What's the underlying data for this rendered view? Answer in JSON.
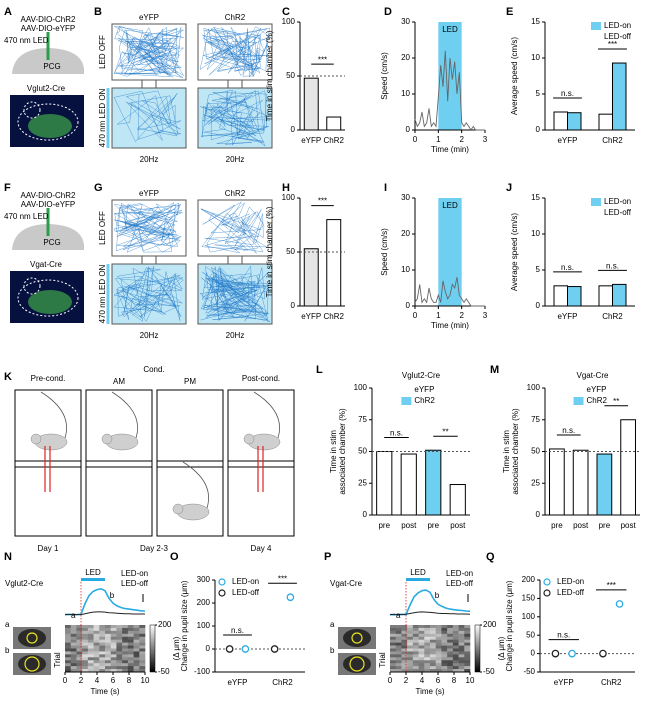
{
  "panel_labels": [
    "A",
    "B",
    "C",
    "D",
    "E",
    "F",
    "G",
    "H",
    "I",
    "J",
    "K",
    "L",
    "M",
    "N",
    "O",
    "P",
    "Q"
  ],
  "schematics": {
    "A": {
      "virus": [
        "AAV-DIO-ChR2",
        "AAV-DIO-eYFP"
      ],
      "light": "470 nm LED",
      "region": "PCG",
      "line": "Vglut2-Cre"
    },
    "F": {
      "virus": [
        "AAV-DIO-ChR2",
        "AAV-DIO-eYFP"
      ],
      "light": "470 nm LED",
      "region": "PCG",
      "line": "Vgat-Cre"
    },
    "B": {
      "groups": [
        "eYFP",
        "ChR2"
      ],
      "rows": [
        "LED OFF",
        "470 nm LED ON"
      ],
      "freq": [
        "20Hz",
        "20Hz"
      ]
    },
    "G": {
      "groups": [
        "eYFP",
        "ChR2"
      ],
      "rows": [
        "LED OFF",
        "470 nm LED ON"
      ],
      "freq": [
        "20Hz",
        "20Hz"
      ]
    },
    "K": {
      "phases": [
        "Pre-cond.",
        "Cond.",
        "Post-cond."
      ],
      "sessions": [
        "AM",
        "PM"
      ],
      "days": [
        "Day 1",
        "Day 2-3",
        "Day 4"
      ]
    }
  },
  "chart_data": [
    {
      "type": "bar",
      "categories": [
        "eYFP",
        "ChR2"
      ],
      "values": [
        48,
        12
      ],
      "colors": [
        "#e6e6e6",
        "#ffffff"
      ],
      "ylim": [
        0,
        100
      ],
      "yticks": [
        0,
        50,
        100
      ],
      "ylabel": "Time in stim chamber (%)",
      "reference_line": 50,
      "annotations": [
        "***"
      ]
    },
    {
      "type": "line",
      "x": [
        0,
        0.1,
        0.2,
        0.3,
        0.4,
        0.5,
        0.6,
        0.7,
        0.8,
        0.9,
        1,
        1.1,
        1.2,
        1.3,
        1.4,
        1.5,
        1.6,
        1.7,
        1.8,
        1.9,
        2,
        2.1,
        2.2,
        2.3,
        2.4,
        2.5,
        2.6,
        2.7,
        2.8,
        2.9,
        3
      ],
      "values": [
        3,
        1,
        2,
        5,
        1,
        2,
        6,
        1,
        2,
        1,
        9,
        18,
        12,
        22,
        8,
        20,
        14,
        19,
        10,
        16,
        2,
        1,
        2,
        1,
        0,
        1,
        0,
        0,
        0,
        0,
        0
      ],
      "color": "#666666",
      "xlim": [
        0,
        3
      ],
      "xticks": [
        0,
        1,
        2,
        3
      ],
      "ylim": [
        0,
        30
      ],
      "yticks": [
        0,
        10,
        20,
        30
      ],
      "xlabel": "Time (min)",
      "ylabel": "Speed (cm/s)",
      "span": [
        1,
        2
      ],
      "span_color": "#6fcff0",
      "span_label": "LED"
    },
    {
      "type": "grouped_bar",
      "categories": [
        "eYFP",
        "ChR2"
      ],
      "series": [
        {
          "name": "LED-on",
          "color": "#6fcff0",
          "values": [
            2.4,
            9.3
          ]
        },
        {
          "name": "LED-off",
          "color": "#ffffff",
          "values": [
            2.5,
            2.2
          ]
        }
      ],
      "ylim": [
        0,
        15
      ],
      "yticks": [
        0,
        5,
        10,
        15
      ],
      "ylabel": "Average speed (cm/s)",
      "annotations": [
        "n.s.",
        "***"
      ]
    },
    {
      "type": "bar",
      "categories": [
        "eYFP",
        "ChR2"
      ],
      "values": [
        53,
        80
      ],
      "colors": [
        "#e6e6e6",
        "#ffffff"
      ],
      "ylim": [
        0,
        100
      ],
      "yticks": [
        0,
        50,
        100
      ],
      "ylabel": "Time in stim chamber (%)",
      "reference_line": 50,
      "annotations": [
        "***"
      ]
    },
    {
      "type": "line",
      "x": [
        0,
        0.1,
        0.2,
        0.3,
        0.4,
        0.5,
        0.6,
        0.7,
        0.8,
        0.9,
        1,
        1.1,
        1.2,
        1.3,
        1.4,
        1.5,
        1.6,
        1.7,
        1.8,
        1.9,
        2,
        2.1,
        2.2,
        2.3,
        2.4,
        2.5,
        2.6,
        2.7,
        2.8,
        2.9,
        3
      ],
      "values": [
        1,
        2,
        6,
        1,
        2,
        1,
        5,
        2,
        1,
        1,
        3,
        1,
        7,
        4,
        2,
        3,
        6,
        5,
        8,
        3,
        2,
        1,
        2,
        1,
        0,
        0,
        0,
        0,
        0,
        0,
        0
      ],
      "color": "#666666",
      "xlim": [
        0,
        3
      ],
      "xticks": [
        0,
        1,
        2,
        3
      ],
      "ylim": [
        0,
        30
      ],
      "yticks": [
        0,
        10,
        20,
        30
      ],
      "xlabel": "Time (min)",
      "ylabel": "Speed (cm/s)",
      "span": [
        1,
        2
      ],
      "span_color": "#6fcff0",
      "span_label": "LED"
    },
    {
      "type": "grouped_bar",
      "categories": [
        "eYFP",
        "ChR2"
      ],
      "series": [
        {
          "name": "LED-on",
          "color": "#6fcff0",
          "values": [
            2.7,
            3.0
          ]
        },
        {
          "name": "LED-off",
          "color": "#ffffff",
          "values": [
            2.8,
            2.8
          ]
        }
      ],
      "ylim": [
        0,
        15
      ],
      "yticks": [
        0,
        5,
        10,
        15
      ],
      "ylabel": "Average speed (cm/s)",
      "annotations": [
        "n.s.",
        "n.s."
      ]
    },
    {
      "type": "bar",
      "title": "Vglut2-Cre",
      "categories": [
        "pre",
        "post",
        "pre",
        "post"
      ],
      "values": [
        50,
        48,
        51,
        24
      ],
      "colors": [
        "#ffffff",
        "#ffffff",
        "#6fcff0",
        "#ffffff"
      ],
      "legend": [
        {
          "name": "eYFP",
          "color": "#ffffff"
        },
        {
          "name": "ChR2",
          "color": "#6fcff0"
        }
      ],
      "ylim": [
        0,
        100
      ],
      "yticks": [
        0,
        25,
        50,
        75,
        100
      ],
      "ylabel": [
        "Time in stim",
        "associated chamber (%)"
      ],
      "reference_line": 50,
      "annotations": [
        "n.s.",
        "**"
      ]
    },
    {
      "type": "bar",
      "title": "Vgat-Cre",
      "categories": [
        "pre",
        "post",
        "pre",
        "post"
      ],
      "values": [
        52,
        51,
        48,
        75
      ],
      "colors": [
        "#ffffff",
        "#ffffff",
        "#6fcff0",
        "#ffffff"
      ],
      "legend": [
        {
          "name": "eYFP",
          "color": "#ffffff"
        },
        {
          "name": "ChR2",
          "color": "#6fcff0"
        }
      ],
      "ylim": [
        0,
        100
      ],
      "yticks": [
        0,
        25,
        50,
        75,
        100
      ],
      "ylabel": [
        "Time in stim",
        "associated chamber (%)"
      ],
      "reference_line": 50,
      "annotations": [
        "n.s.",
        "**"
      ]
    },
    {
      "type": "trace",
      "title": "Vglut2-Cre",
      "x": [
        0,
        0.5,
        1,
        1.5,
        2,
        2.5,
        3,
        3.5,
        4,
        4.5,
        5,
        5.5,
        6,
        6.5,
        7,
        7.5,
        8,
        8.5,
        9,
        9.5,
        10
      ],
      "series": [
        {
          "name": "LED-on",
          "color": "#29abe2",
          "values": [
            0,
            1,
            -1,
            0,
            1,
            40,
            70,
            85,
            92,
            95,
            88,
            60,
            42,
            32,
            26,
            22,
            20,
            18,
            16,
            14,
            13
          ]
        },
        {
          "name": "LED-off",
          "color": "#222222",
          "values": [
            0,
            0,
            1,
            0,
            0,
            3,
            6,
            9,
            10,
            10,
            9,
            7,
            6,
            5,
            4,
            3,
            3,
            2,
            2,
            2,
            2
          ]
        }
      ],
      "xlim": [
        0,
        10
      ],
      "xticks": [
        0,
        2,
        4,
        6,
        8,
        10
      ],
      "ylim": [
        -20,
        120
      ],
      "xlabel": "Time (s)",
      "span": [
        2,
        5
      ],
      "span_color": "#29abe2",
      "span_label": "LED",
      "point_labels": [
        "a",
        "b"
      ],
      "row_label": "Trial",
      "clim": [
        -50,
        200
      ],
      "cticks": [
        -50,
        200
      ],
      "clabel": "(Δ μm)"
    },
    {
      "type": "dot",
      "categories": [
        "eYFP",
        "ChR2"
      ],
      "series": [
        {
          "name": "LED-on",
          "color": "#29abe2",
          "values": [
            0,
            225
          ]
        },
        {
          "name": "LED-off",
          "color": "#222222",
          "values": [
            0,
            0
          ]
        }
      ],
      "ylim": [
        -100,
        300
      ],
      "yticks": [
        -100,
        0,
        100,
        200,
        300
      ],
      "ylabel": "Change in pupil size (μm)",
      "reference_line": 0,
      "annotations": [
        "n.s.",
        "***"
      ]
    },
    {
      "type": "trace",
      "title": "Vgat-Cre",
      "x": [
        0,
        0.5,
        1,
        1.5,
        2,
        2.5,
        3,
        3.5,
        4,
        4.5,
        5,
        5.5,
        6,
        6.5,
        7,
        7.5,
        8,
        8.5,
        9,
        9.5,
        10
      ],
      "series": [
        {
          "name": "LED-on",
          "color": "#29abe2",
          "values": [
            0,
            -1,
            0,
            1,
            0,
            35,
            65,
            80,
            88,
            90,
            82,
            55,
            38,
            30,
            24,
            20,
            18,
            16,
            15,
            13,
            12
          ]
        },
        {
          "name": "LED-off",
          "color": "#222222",
          "values": [
            0,
            1,
            0,
            0,
            1,
            4,
            7,
            9,
            10,
            9,
            8,
            7,
            5,
            4,
            4,
            3,
            3,
            2,
            2,
            2,
            1
          ]
        }
      ],
      "xlim": [
        0,
        10
      ],
      "xticks": [
        0,
        2,
        4,
        6,
        8,
        10
      ],
      "ylim": [
        -20,
        120
      ],
      "xlabel": "Time (s)",
      "span": [
        2,
        5
      ],
      "span_color": "#29abe2",
      "span_label": "LED",
      "point_labels": [
        "a",
        "b"
      ],
      "row_label": "Trial",
      "clim": [
        -50,
        200
      ],
      "cticks": [
        -50,
        200
      ],
      "clabel": "(Δ μm)"
    },
    {
      "type": "dot",
      "categories": [
        "eYFP",
        "ChR2"
      ],
      "series": [
        {
          "name": "LED-on",
          "color": "#29abe2",
          "values": [
            0,
            135
          ]
        },
        {
          "name": "LED-off",
          "color": "#222222",
          "values": [
            0,
            0
          ]
        }
      ],
      "ylim": [
        -50,
        200
      ],
      "yticks": [
        -50,
        0,
        50,
        100,
        150,
        200
      ],
      "ylabel": "Change in pupil size (μm)",
      "reference_line": 0,
      "annotations": [
        "n.s.",
        "***"
      ]
    }
  ]
}
